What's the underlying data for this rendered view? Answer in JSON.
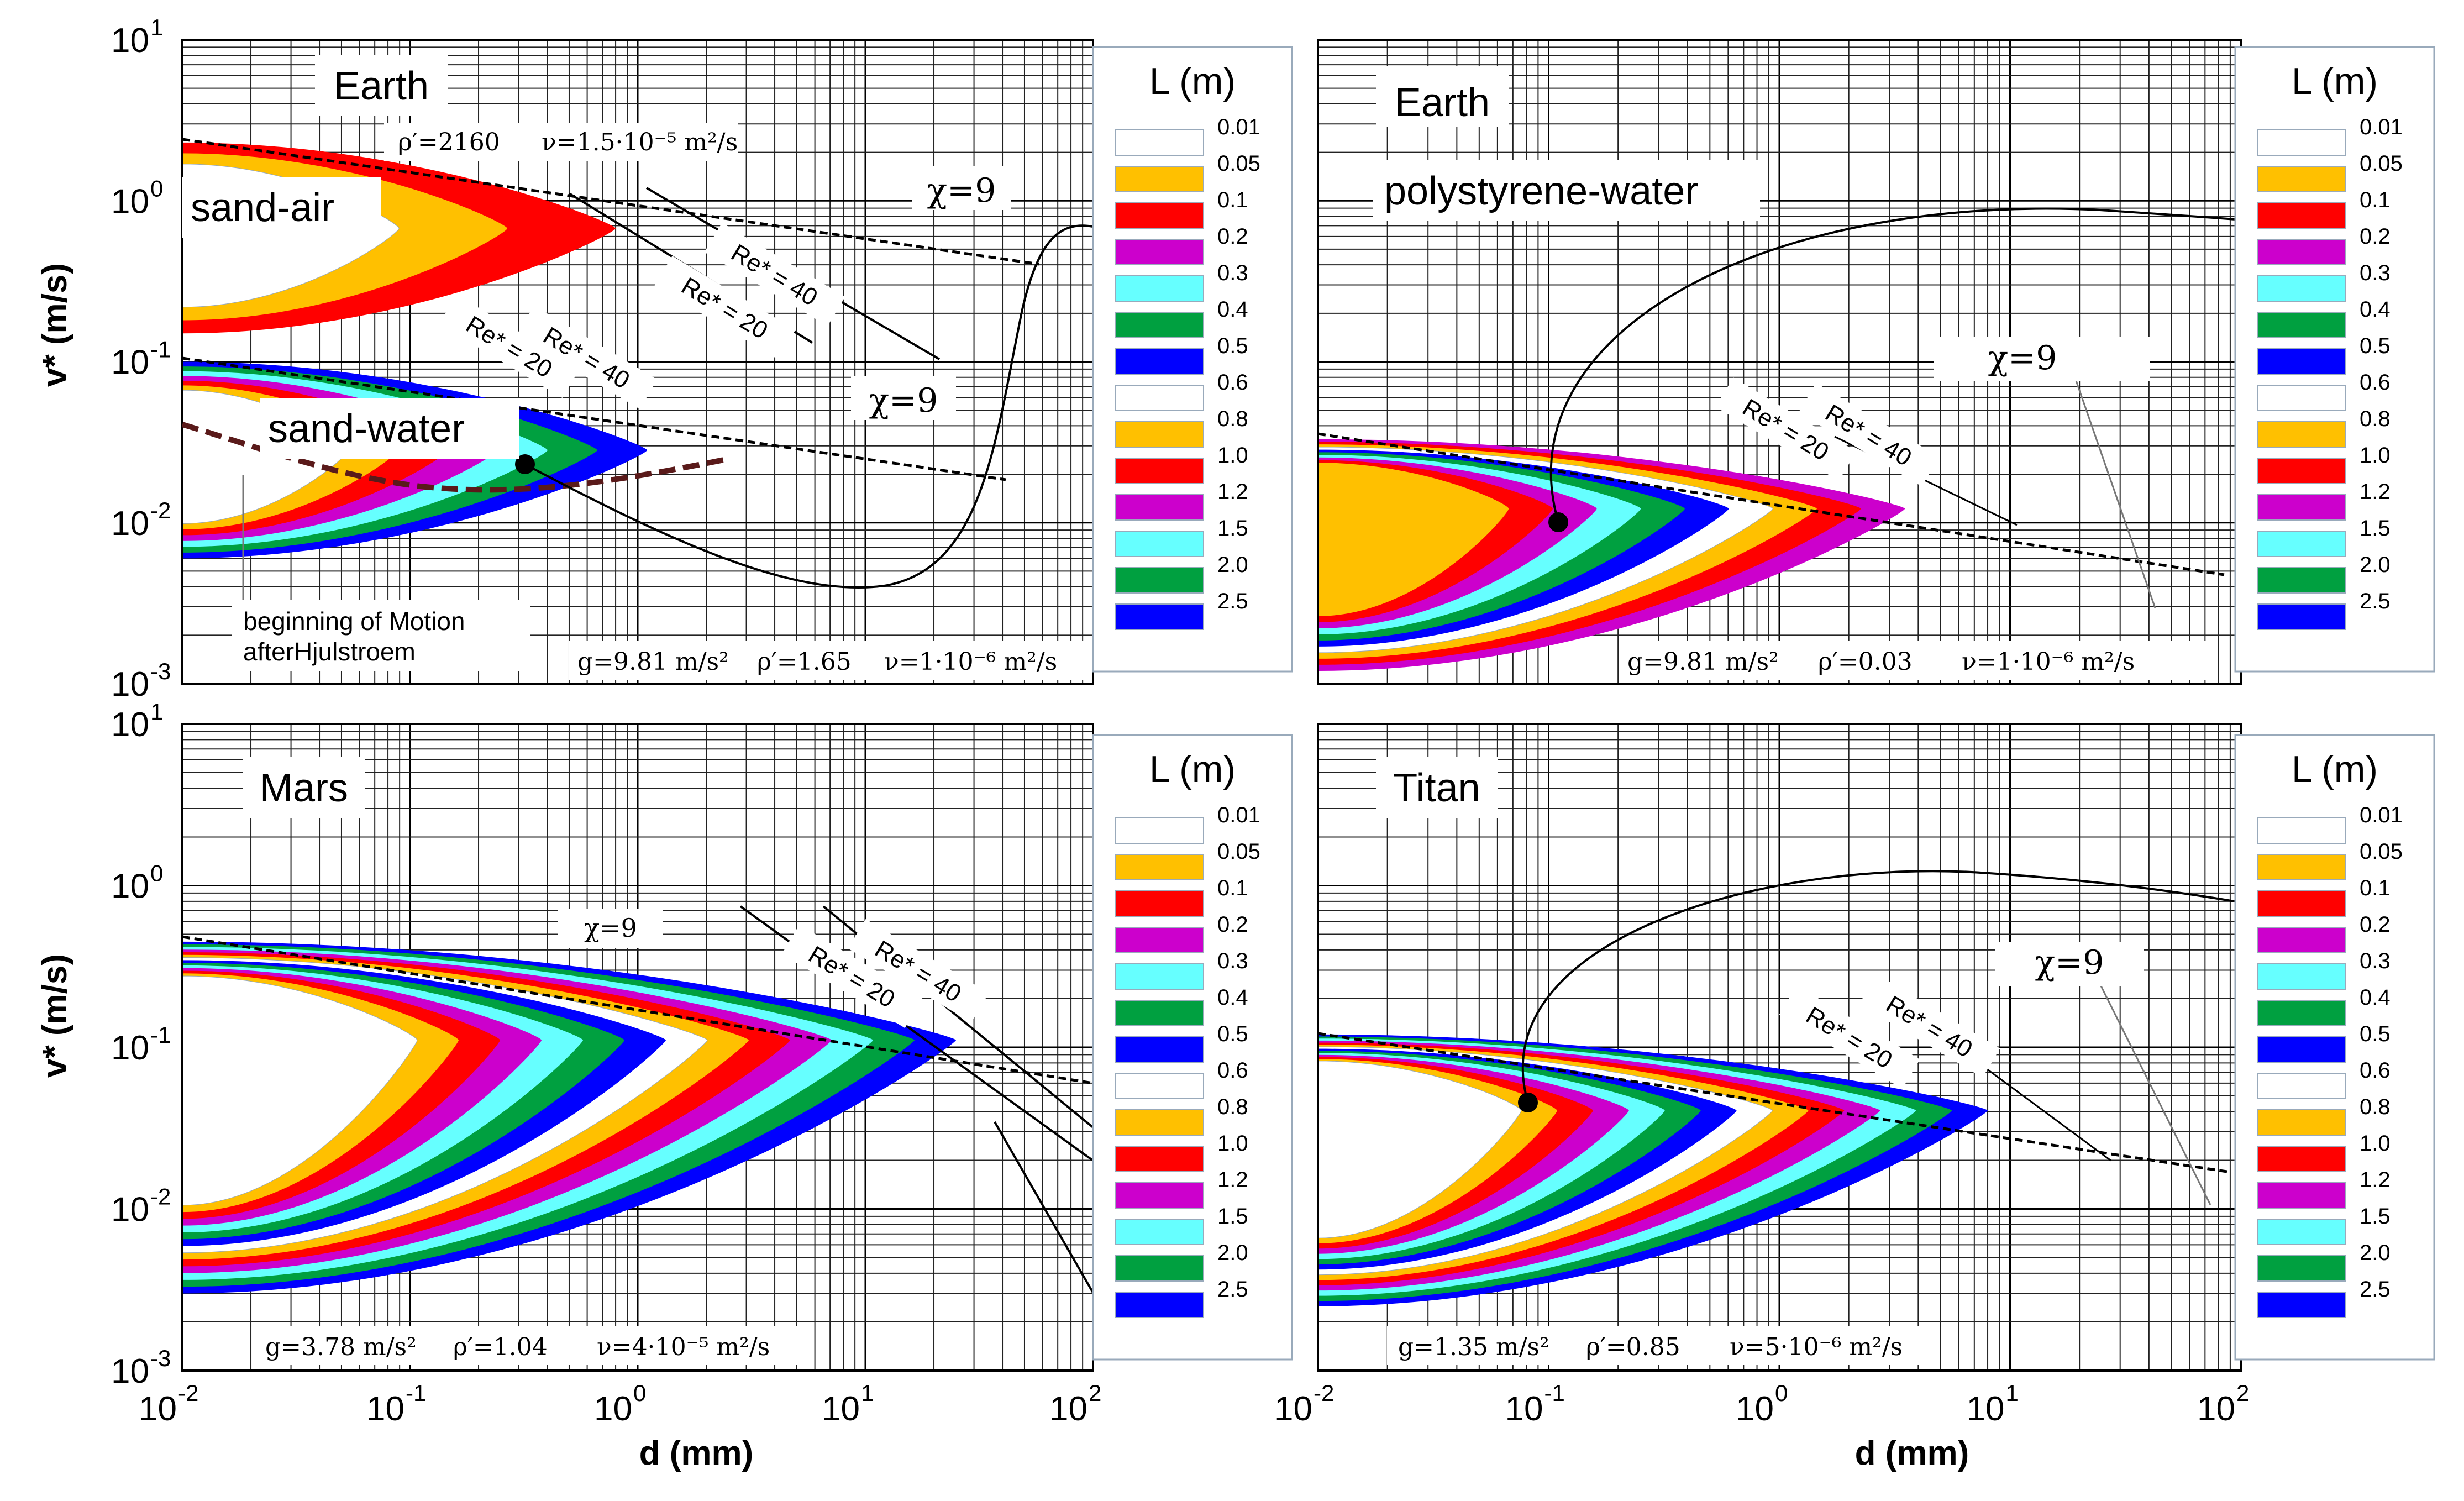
{
  "figure": {
    "ylabel": "v* (m/s)",
    "xlabel": "d (mm)",
    "x_ticks": [
      {
        "base": "10",
        "exp": "-2"
      },
      {
        "base": "10",
        "exp": "-1"
      },
      {
        "base": "10",
        "exp": "0"
      },
      {
        "base": "10",
        "exp": "1"
      },
      {
        "base": "10",
        "exp": "2"
      }
    ],
    "y_ticks": [
      {
        "base": "10",
        "exp": "-3"
      },
      {
        "base": "10",
        "exp": "-2"
      },
      {
        "base": "10",
        "exp": "-1"
      },
      {
        "base": "10",
        "exp": "0"
      },
      {
        "base": "10",
        "exp": "1"
      }
    ]
  },
  "legend": {
    "title": "L (m)",
    "entries": [
      {
        "label": "0.01",
        "color": "#ffffff"
      },
      {
        "label": "0.05",
        "color": "#ffc000"
      },
      {
        "label": "0.1",
        "color": "#ff0000"
      },
      {
        "label": "0.2",
        "color": "#cc00cc"
      },
      {
        "label": "0.3",
        "color": "#66ffff"
      },
      {
        "label": "0.4",
        "color": "#00a040"
      },
      {
        "label": "0.5",
        "color": "#0000ff"
      },
      {
        "label": "0.6",
        "color": "#ffffff"
      },
      {
        "label": "0.8",
        "color": "#ffc000"
      },
      {
        "label": "1.0",
        "color": "#ff0000"
      },
      {
        "label": "1.2",
        "color": "#cc00cc"
      },
      {
        "label": "1.5",
        "color": "#66ffff"
      },
      {
        "label": "2.0",
        "color": "#00a040"
      },
      {
        "label": "2.5",
        "color": "#0000ff"
      }
    ]
  },
  "chart_data": [
    {
      "type": "area",
      "panel": "top-left",
      "title": "Earth",
      "xlabel": "",
      "ylabel": "v* (m/s)",
      "xscale": "log",
      "yscale": "log",
      "xlim": [
        0.01,
        100
      ],
      "ylim": [
        0.001,
        10
      ],
      "annotations": {
        "subtitle1": "sand-air",
        "params_air": [
          "ρ′=2160",
          "ν=1.5·10⁻⁵ m²/s"
        ],
        "subtitle2": "sand-water",
        "params_water": [
          "g=9.81 m/s²",
          "ρ′=1.65",
          "ν=1·10⁻⁶ m²/s"
        ],
        "hjulstroem_label": [
          "beginning of Motion",
          "afterHjulstroem"
        ],
        "chi_air": "χ=9",
        "chi_water": "χ=9",
        "re20": "Re* = 20",
        "re40": "Re* = 40"
      },
      "series": [
        {
          "name": "sand-air L=0.01..0.1 m",
          "x_max": 0.8,
          "v_min": 0.15,
          "v_max": 2.3
        },
        {
          "name": "sand-water L=0.01..2.5 m",
          "x_max": 1.1,
          "v_min": 0.006,
          "v_max": 0.1
        },
        {
          "name": "Hjulstroem threshold",
          "x": [
            0.01,
            0.1,
            0.3,
            1.0
          ],
          "y": [
            0.04,
            0.025,
            0.017,
            0.025
          ]
        },
        {
          "name": "χ=9 upper bound (air)",
          "x": [
            0.01,
            20
          ],
          "y": [
            2.3,
            0.6
          ]
        },
        {
          "name": "χ=9 upper bound (water)",
          "x": [
            0.01,
            20
          ],
          "y": [
            0.1,
            0.018
          ]
        }
      ]
    },
    {
      "type": "area",
      "panel": "top-right",
      "title": "Earth",
      "xlabel": "",
      "ylabel": "",
      "xscale": "log",
      "yscale": "log",
      "xlim": [
        0.01,
        100
      ],
      "ylim": [
        0.001,
        10
      ],
      "annotations": {
        "subtitle": "polystyrene-water",
        "params": [
          "g=9.81 m/s²",
          "ρ′=0.03",
          "ν=1·10⁻⁶ m²/s"
        ],
        "chi": "χ=9",
        "re20": "Re* = 20",
        "re40": "Re* = 40"
      },
      "series": [
        {
          "name": "polystyrene-water L=0.01..2.5 m",
          "x_max": 3.5,
          "v_min": 0.0012,
          "v_max": 0.033
        },
        {
          "name": "χ=9 upper bound",
          "x": [
            0.01,
            25
          ],
          "y": [
            0.033,
            0.0045
          ]
        }
      ]
    },
    {
      "type": "area",
      "panel": "bottom-left",
      "title": "Mars",
      "xlabel": "d (mm)",
      "ylabel": "v* (m/s)",
      "xscale": "log",
      "yscale": "log",
      "xlim": [
        0.01,
        100
      ],
      "ylim": [
        0.001,
        10
      ],
      "annotations": {
        "params": [
          "g=3.78 m/s²",
          "ρ′=1.04",
          "ν=4·10⁻⁵ m²/s"
        ],
        "chi": "χ=9",
        "re20": "Re* = 20",
        "re40": "Re* = 40"
      },
      "series": [
        {
          "name": "Mars L=0.01..2.5 m",
          "x_max": 25,
          "v_min": 0.003,
          "v_max": 0.45
        },
        {
          "name": "χ=9 upper bound",
          "x": [
            0.01,
            25
          ],
          "y": [
            0.45,
            0.055
          ]
        }
      ]
    },
    {
      "type": "area",
      "panel": "bottom-right",
      "title": "Titan",
      "xlabel": "d (mm)",
      "ylabel": "",
      "xscale": "log",
      "yscale": "log",
      "xlim": [
        0.01,
        100
      ],
      "ylim": [
        0.001,
        10
      ],
      "annotations": {
        "params": [
          "g=1.35 m/s²",
          "ρ′=0.85",
          "ν=5·10⁻⁶ m²/s"
        ],
        "chi": "χ=9",
        "re20": "Re* = 20",
        "re40": "Re* = 40"
      },
      "series": [
        {
          "name": "Titan L=0.01..2.5 m",
          "x_max": 8,
          "v_min": 0.0025,
          "v_max": 0.12
        },
        {
          "name": "χ=9 upper bound",
          "x": [
            0.01,
            25
          ],
          "y": [
            0.12,
            0.016
          ]
        }
      ]
    }
  ]
}
